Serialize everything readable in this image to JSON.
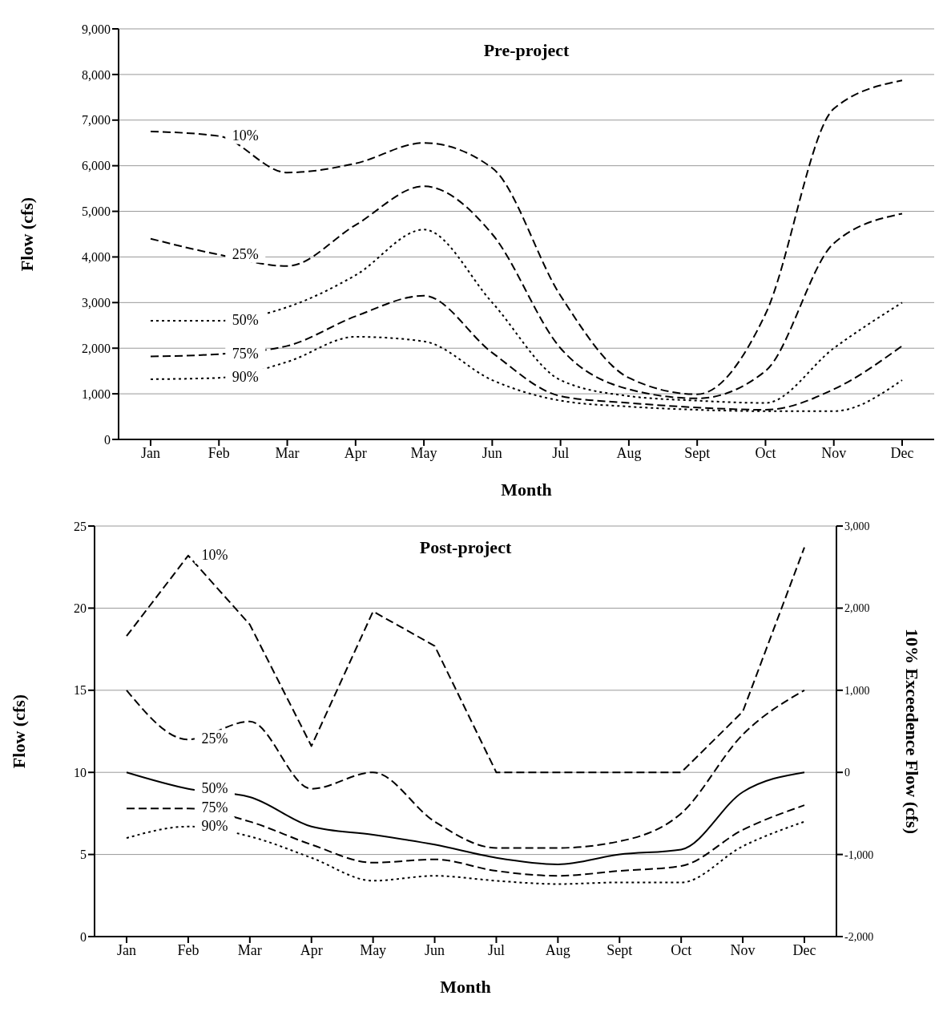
{
  "chart_data": [
    {
      "type": "line",
      "title": "Pre-project",
      "xlabel": "Month",
      "ylabel": "Flow (cfs)",
      "categories": [
        "Jan",
        "Feb",
        "Mar",
        "Apr",
        "May",
        "Jun",
        "Jul",
        "Aug",
        "Sept",
        "Oct",
        "Nov",
        "Dec"
      ],
      "series": [
        {
          "name": "10%",
          "color": "#000000",
          "line_style": "dashed",
          "values": [
            6750,
            6650,
            5850,
            6050,
            6500,
            5950,
            3150,
            1350,
            990,
            2750,
            7250,
            7870
          ]
        },
        {
          "name": "25%",
          "color": "#000000",
          "line_style": "dashed",
          "values": [
            4400,
            4050,
            3800,
            4700,
            5550,
            4500,
            2000,
            1100,
            900,
            1500,
            4300,
            4950
          ]
        },
        {
          "name": "50%",
          "color": "#000000",
          "line_style": "dotted",
          "values": [
            2600,
            2600,
            2900,
            3600,
            4600,
            3000,
            1300,
            950,
            850,
            800,
            2000,
            3000
          ]
        },
        {
          "name": "75%",
          "color": "#000000",
          "line_style": "dashed",
          "values": [
            1820,
            1870,
            2050,
            2700,
            3150,
            1900,
            950,
            800,
            700,
            650,
            1100,
            2050
          ]
        },
        {
          "name": "90%",
          "color": "#000000",
          "line_style": "dotted",
          "values": [
            1320,
            1350,
            1700,
            2250,
            2150,
            1300,
            850,
            720,
            650,
            620,
            620,
            1300
          ]
        }
      ],
      "ylim": [
        0,
        9000
      ],
      "yticks": [
        0,
        {
          "value": 1000,
          "label": "1,000"
        },
        {
          "value": 2000,
          "label": "2,000"
        },
        {
          "value": 3000,
          "label": "3,000"
        },
        {
          "value": 4000,
          "label": "4,000"
        },
        {
          "value": 5000,
          "label": "5,000"
        },
        {
          "value": 6000,
          "label": "6,000"
        },
        {
          "value": 7000,
          "label": "7,000"
        },
        {
          "value": 8000,
          "label": "8,000"
        },
        {
          "value": 9000,
          "label": "9,000"
        }
      ],
      "grid": "y",
      "legend": false,
      "marker": "none"
    },
    {
      "type": "line",
      "title": "Post-project",
      "xlabel": "Month",
      "ylabel": "Flow (cfs)",
      "y2label": "10% Exceedence Flow (cfs)",
      "categories": [
        "Jan",
        "Feb",
        "Mar",
        "Apr",
        "May",
        "Jun",
        "Jul",
        "Aug",
        "Sept",
        "Oct",
        "Nov",
        "Dec"
      ],
      "series": [
        {
          "name": "10%",
          "color": "#000000",
          "line_style": "dashed",
          "axis": "y2",
          "values": [
            1660,
            2640,
            1800,
            320,
            1960,
            1540,
            0,
            0,
            0,
            0,
            740,
            2740
          ]
        },
        {
          "name": "25%",
          "color": "#000000",
          "line_style": "dashed",
          "values": [
            15,
            12,
            13.1,
            9,
            10,
            7,
            5.4,
            5.4,
            5.8,
            7.5,
            12.3,
            15
          ]
        },
        {
          "name": "50%",
          "color": "#000000",
          "line_style": "solid",
          "values": [
            10,
            9,
            8.5,
            6.7,
            6.2,
            5.6,
            4.8,
            4.4,
            5,
            5.3,
            8.8,
            10
          ]
        },
        {
          "name": "75%",
          "color": "#000000",
          "line_style": "dashed",
          "values": [
            7.8,
            7.8,
            7,
            5.6,
            4.5,
            4.7,
            4,
            3.7,
            4,
            4.3,
            6.5,
            8
          ]
        },
        {
          "name": "90%",
          "color": "#000000",
          "line_style": "dotted",
          "values": [
            6,
            6.7,
            6.1,
            4.8,
            3.4,
            3.7,
            3.4,
            3.2,
            3.3,
            3.3,
            5.5,
            7
          ]
        }
      ],
      "ylim": [
        0,
        25
      ],
      "yticks": [
        0,
        5,
        10,
        15,
        20,
        25
      ],
      "y2lim": [
        -2000,
        3000
      ],
      "y2ticks": [
        {
          "value": -2000,
          "label": "-2,000"
        },
        {
          "value": -1000,
          "label": "-1,000"
        },
        0,
        {
          "value": 1000,
          "label": "1,000"
        },
        {
          "value": 2000,
          "label": "2,000"
        },
        {
          "value": 3000,
          "label": "3,000"
        }
      ],
      "grid": "y",
      "legend": false,
      "marker": "none"
    }
  ]
}
